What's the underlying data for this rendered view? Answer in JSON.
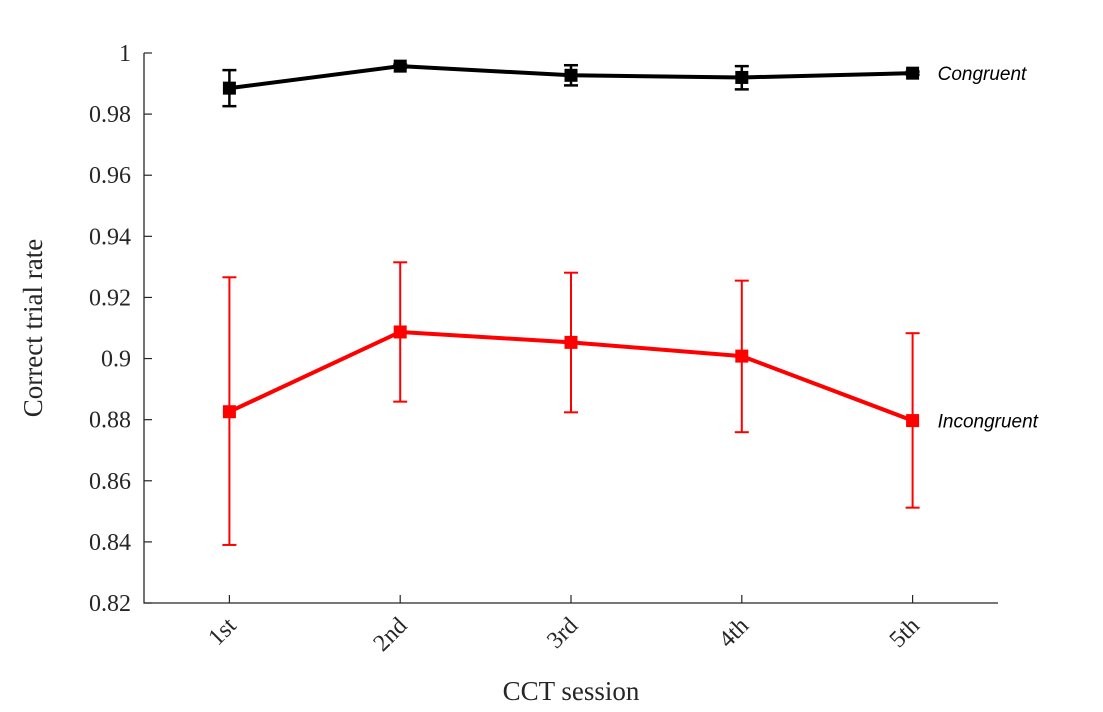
{
  "chart_data": {
    "type": "line",
    "title": "",
    "xlabel": "CCT session",
    "ylabel": "Correct trial rate",
    "categories": [
      "1st",
      "2nd",
      "3rd",
      "4th",
      "5th"
    ],
    "xlim": [
      0.5,
      5.5
    ],
    "ylim": [
      0.82,
      1.0
    ],
    "yticks": [
      0.82,
      0.84,
      0.86,
      0.88,
      0.9,
      0.92,
      0.94,
      0.96,
      0.98,
      1
    ],
    "ytick_labels": [
      "0.82",
      "0.84",
      "0.86",
      "0.88",
      "0.9",
      "0.92",
      "0.94",
      "0.96",
      "0.98",
      "1"
    ],
    "grid": false,
    "legend": "inline-right",
    "series": [
      {
        "name": "Congruent",
        "color": "#000000",
        "values": [
          0.9885,
          0.9957,
          0.9927,
          0.992,
          0.9934
        ],
        "err_low": [
          0.9826,
          0.9952,
          0.9894,
          0.9881,
          0.9929
        ],
        "err_high": [
          0.9944,
          0.9962,
          0.996,
          0.9957,
          0.9939
        ]
      },
      {
        "name": "Incongruent",
        "color": "#ff0000",
        "values": [
          0.8826,
          0.9087,
          0.9053,
          0.9008,
          0.8797
        ],
        "err_low": [
          0.839,
          0.8859,
          0.8824,
          0.8759,
          0.8512
        ],
        "err_high": [
          0.9266,
          0.9315,
          0.9281,
          0.9255,
          0.9083
        ]
      }
    ]
  }
}
